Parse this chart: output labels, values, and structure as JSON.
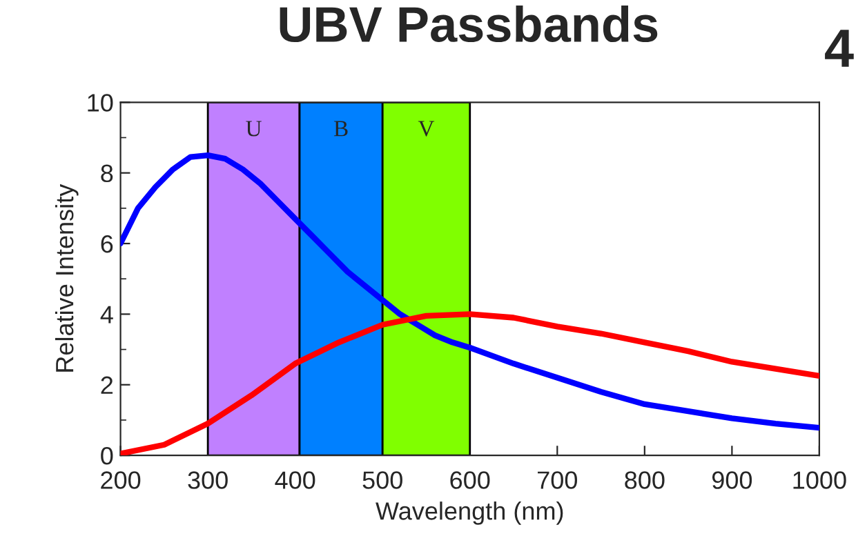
{
  "chart_data": {
    "type": "line",
    "title": "UBV Passbands",
    "xlabel": "Wavelength (nm)",
    "ylabel": "Relative Intensity",
    "xlim": [
      200,
      1000
    ],
    "xticks": [
      200,
      300,
      400,
      500,
      600,
      700,
      800,
      900,
      1000
    ],
    "ylim": [
      0,
      10
    ],
    "yticks": [
      0,
      2,
      4,
      6,
      8,
      10
    ],
    "grid": false,
    "series": [
      {
        "color": "#0000ff",
        "x": [
          200,
          220,
          240,
          260,
          280,
          300,
          320,
          340,
          360,
          380,
          400,
          420,
          440,
          460,
          480,
          500,
          520,
          540,
          560,
          580,
          600,
          650,
          700,
          750,
          800,
          850,
          900,
          950,
          1000
        ],
        "values": [
          6.0,
          7.0,
          7.6,
          8.1,
          8.45,
          8.5,
          8.4,
          8.1,
          7.7,
          7.2,
          6.7,
          6.2,
          5.7,
          5.2,
          4.8,
          4.4,
          4.0,
          3.7,
          3.4,
          3.2,
          3.05,
          2.6,
          2.2,
          1.8,
          1.45,
          1.25,
          1.05,
          0.9,
          0.78
        ]
      },
      {
        "color": "#ff0000",
        "x": [
          200,
          250,
          300,
          350,
          400,
          450,
          500,
          550,
          600,
          650,
          700,
          750,
          800,
          850,
          900,
          950,
          1000
        ],
        "values": [
          0.05,
          0.3,
          0.9,
          1.7,
          2.6,
          3.2,
          3.7,
          3.95,
          4.0,
          3.9,
          3.65,
          3.45,
          3.2,
          2.95,
          2.65,
          2.45,
          2.25
        ]
      }
    ],
    "bands": [
      {
        "axis": "x",
        "from": 300,
        "to": 405,
        "label": "U",
        "color": "#c080ff"
      },
      {
        "axis": "x",
        "from": 405,
        "to": 500,
        "label": "B",
        "color": "#0080ff"
      },
      {
        "axis": "x",
        "from": 500,
        "to": 600,
        "label": "V",
        "color": "#80ff00"
      }
    ],
    "annotations": [
      "4"
    ]
  }
}
